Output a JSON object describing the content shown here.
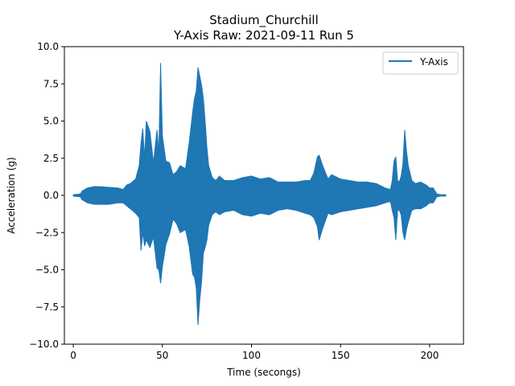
{
  "chart_data": {
    "type": "line",
    "title": "Stadium_Churchill",
    "subtitle": "Y-Axis Raw: 2021-09-11 Run 5",
    "xlabel": "Time (secongs)",
    "ylabel": "Acceleration (g)",
    "xlim": [
      -5,
      219
    ],
    "ylim": [
      -10.0,
      10.0
    ],
    "x_ticks": [
      0,
      50,
      100,
      150,
      200
    ],
    "x_tick_labels": [
      "0",
      "50",
      "100",
      "150",
      "200"
    ],
    "y_ticks": [
      -10.0,
      -7.5,
      -5.0,
      -2.5,
      0.0,
      2.5,
      5.0,
      7.5,
      10.0
    ],
    "y_tick_labels": [
      "−10.0",
      "−7.5",
      "−5.0",
      "−2.5",
      "0.0",
      "2.5",
      "5.0",
      "7.5",
      "10.0"
    ],
    "grid": false,
    "legend_position": "top-right",
    "series": [
      {
        "name": "Y-Axis",
        "color": "#1f77b4",
        "envelope": {
          "x": [
            0,
            4,
            5,
            8,
            12,
            20,
            25,
            28,
            30,
            32,
            35,
            37,
            38,
            39,
            40,
            41,
            43,
            45,
            47,
            48,
            49,
            50,
            52,
            54,
            56,
            58,
            60,
            63,
            65,
            67,
            68,
            69,
            70,
            71,
            72,
            73,
            74,
            75,
            76,
            78,
            80,
            82,
            85,
            90,
            95,
            100,
            105,
            110,
            115,
            120,
            125,
            130,
            133,
            135,
            137,
            138,
            140,
            143,
            145,
            150,
            155,
            160,
            165,
            170,
            175,
            178,
            179,
            180,
            181,
            182,
            183,
            184,
            185,
            186,
            187,
            188,
            190,
            192,
            195,
            198,
            200,
            202,
            204,
            206,
            209
          ],
          "upper": [
            0.05,
            0.1,
            0.3,
            0.5,
            0.6,
            0.55,
            0.5,
            0.4,
            0.7,
            0.8,
            1.1,
            2.0,
            3.5,
            4.5,
            2.5,
            5.0,
            4.3,
            2.2,
            4.4,
            2.8,
            8.9,
            4.0,
            2.3,
            2.2,
            1.4,
            1.6,
            2.0,
            1.8,
            3.5,
            5.6,
            6.5,
            7.0,
            8.6,
            8.0,
            7.4,
            6.5,
            5.0,
            3.2,
            2.0,
            1.2,
            1.0,
            1.3,
            1.0,
            1.0,
            1.2,
            1.3,
            1.1,
            1.2,
            0.9,
            0.9,
            0.9,
            1.0,
            1.0,
            1.5,
            2.6,
            2.7,
            2.0,
            1.1,
            1.4,
            1.1,
            1.0,
            0.9,
            0.9,
            0.8,
            0.5,
            0.4,
            1.0,
            2.3,
            2.6,
            1.0,
            0.9,
            1.3,
            2.1,
            4.4,
            3.0,
            2.0,
            1.0,
            0.8,
            0.9,
            0.7,
            0.5,
            0.5,
            0.1,
            0.05,
            0.05
          ],
          "lower": [
            -0.05,
            -0.1,
            -0.3,
            -0.5,
            -0.6,
            -0.6,
            -0.5,
            -0.5,
            -0.7,
            -0.9,
            -1.2,
            -1.5,
            -3.7,
            -2.5,
            -3.4,
            -3.0,
            -3.5,
            -2.8,
            -4.9,
            -5.0,
            -5.9,
            -4.8,
            -3.3,
            -2.6,
            -1.6,
            -1.9,
            -2.5,
            -2.3,
            -3.4,
            -5.3,
            -5.5,
            -6.2,
            -8.7,
            -7.0,
            -5.8,
            -3.9,
            -3.5,
            -3.0,
            -2.0,
            -1.3,
            -1.1,
            -1.3,
            -1.1,
            -1.0,
            -1.3,
            -1.4,
            -1.2,
            -1.3,
            -1.0,
            -0.9,
            -1.0,
            -1.2,
            -1.3,
            -1.5,
            -2.1,
            -3.0,
            -2.2,
            -1.2,
            -1.3,
            -1.1,
            -1.0,
            -0.9,
            -0.8,
            -0.7,
            -0.5,
            -0.4,
            -1.0,
            -1.5,
            -3.0,
            -1.0,
            -1.0,
            -1.3,
            -2.5,
            -3.0,
            -2.3,
            -1.8,
            -1.0,
            -0.9,
            -0.9,
            -0.7,
            -0.5,
            -0.5,
            -0.1,
            -0.05,
            -0.05
          ]
        }
      }
    ]
  }
}
